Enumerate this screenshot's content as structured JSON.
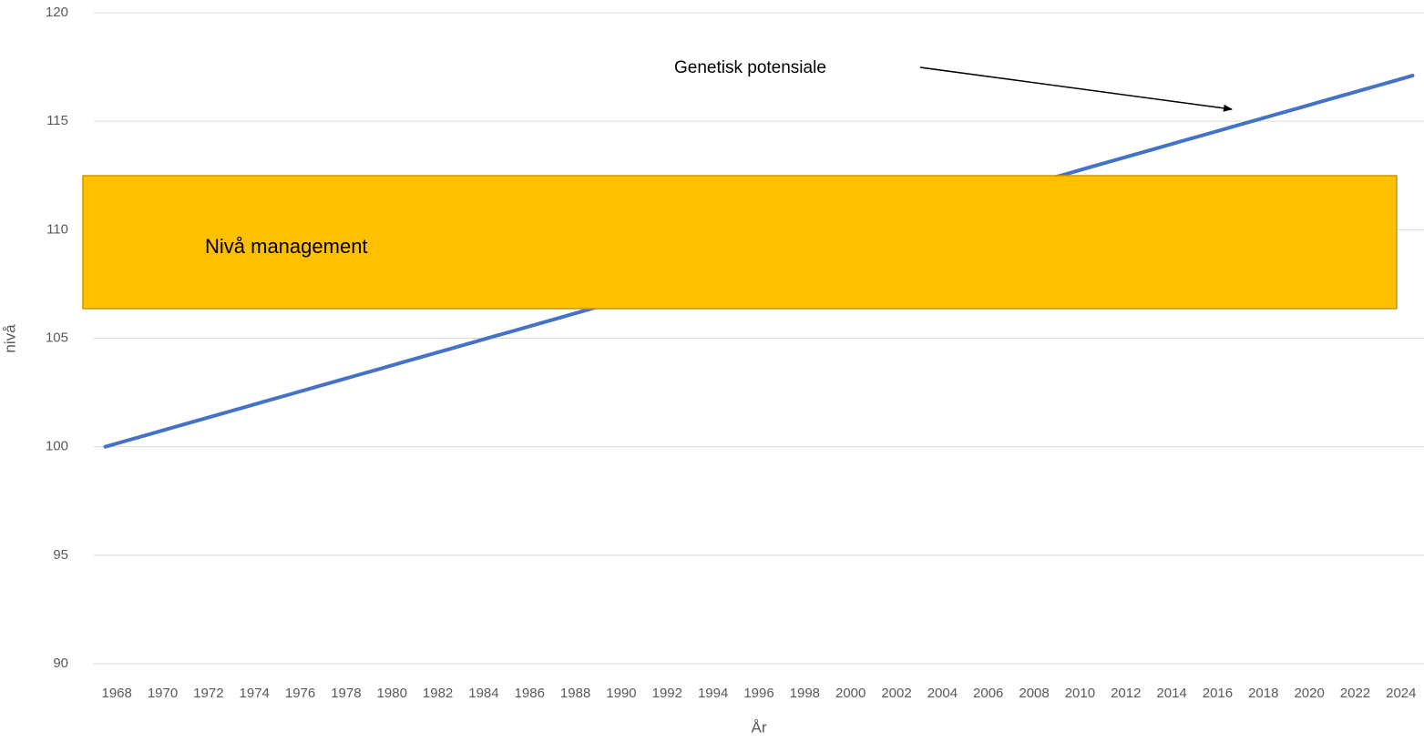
{
  "chart_data": {
    "type": "line",
    "x_label": "År",
    "y_label": "nivå",
    "categories": [
      "1968",
      null,
      "1970",
      null,
      "1972",
      null,
      "1974",
      null,
      "1976",
      null,
      "1978",
      null,
      "1980",
      null,
      "1982",
      null,
      "1984",
      null,
      "1986",
      null,
      "1988",
      null,
      "1990",
      null,
      "1992",
      null,
      "1994",
      null,
      "1996",
      null,
      "1998",
      null,
      "2000",
      null,
      "2002",
      null,
      "2004",
      null,
      "2006",
      null,
      "2008",
      null,
      "2010",
      null,
      "2012",
      null,
      "2014",
      null,
      "2016",
      null,
      "2018",
      null,
      "2020",
      null,
      "2022",
      null,
      "2024",
      null
    ],
    "series": [
      {
        "color": "#4472c4",
        "values": [
          100,
          100.3,
          100.6,
          100.9,
          101.2,
          101.5,
          101.8,
          102.1,
          102.4,
          102.7,
          103,
          103.3,
          103.6,
          103.9,
          104.2,
          104.5,
          104.8,
          105.1,
          105.4,
          105.7,
          106,
          106.3,
          106.6,
          106.9,
          107.2,
          107.5,
          107.8,
          108.1,
          108.4,
          108.7,
          109,
          109.3,
          109.6,
          109.9,
          110.2,
          110.5,
          110.8,
          111.1,
          111.4,
          111.7,
          112,
          112.3,
          112.6,
          112.9,
          113.2,
          113.5,
          113.8,
          114.1,
          114.4,
          114.7,
          115,
          115.3,
          115.6,
          115.9,
          116.2,
          116.5,
          116.8,
          117.1
        ]
      }
    ],
    "ylim": [
      90,
      120
    ],
    "yticks": [
      90,
      95,
      100,
      105,
      110,
      115,
      120
    ],
    "grid": true,
    "annotations": [
      "Genetisk potensiale",
      "Nivå management"
    ]
  }
}
